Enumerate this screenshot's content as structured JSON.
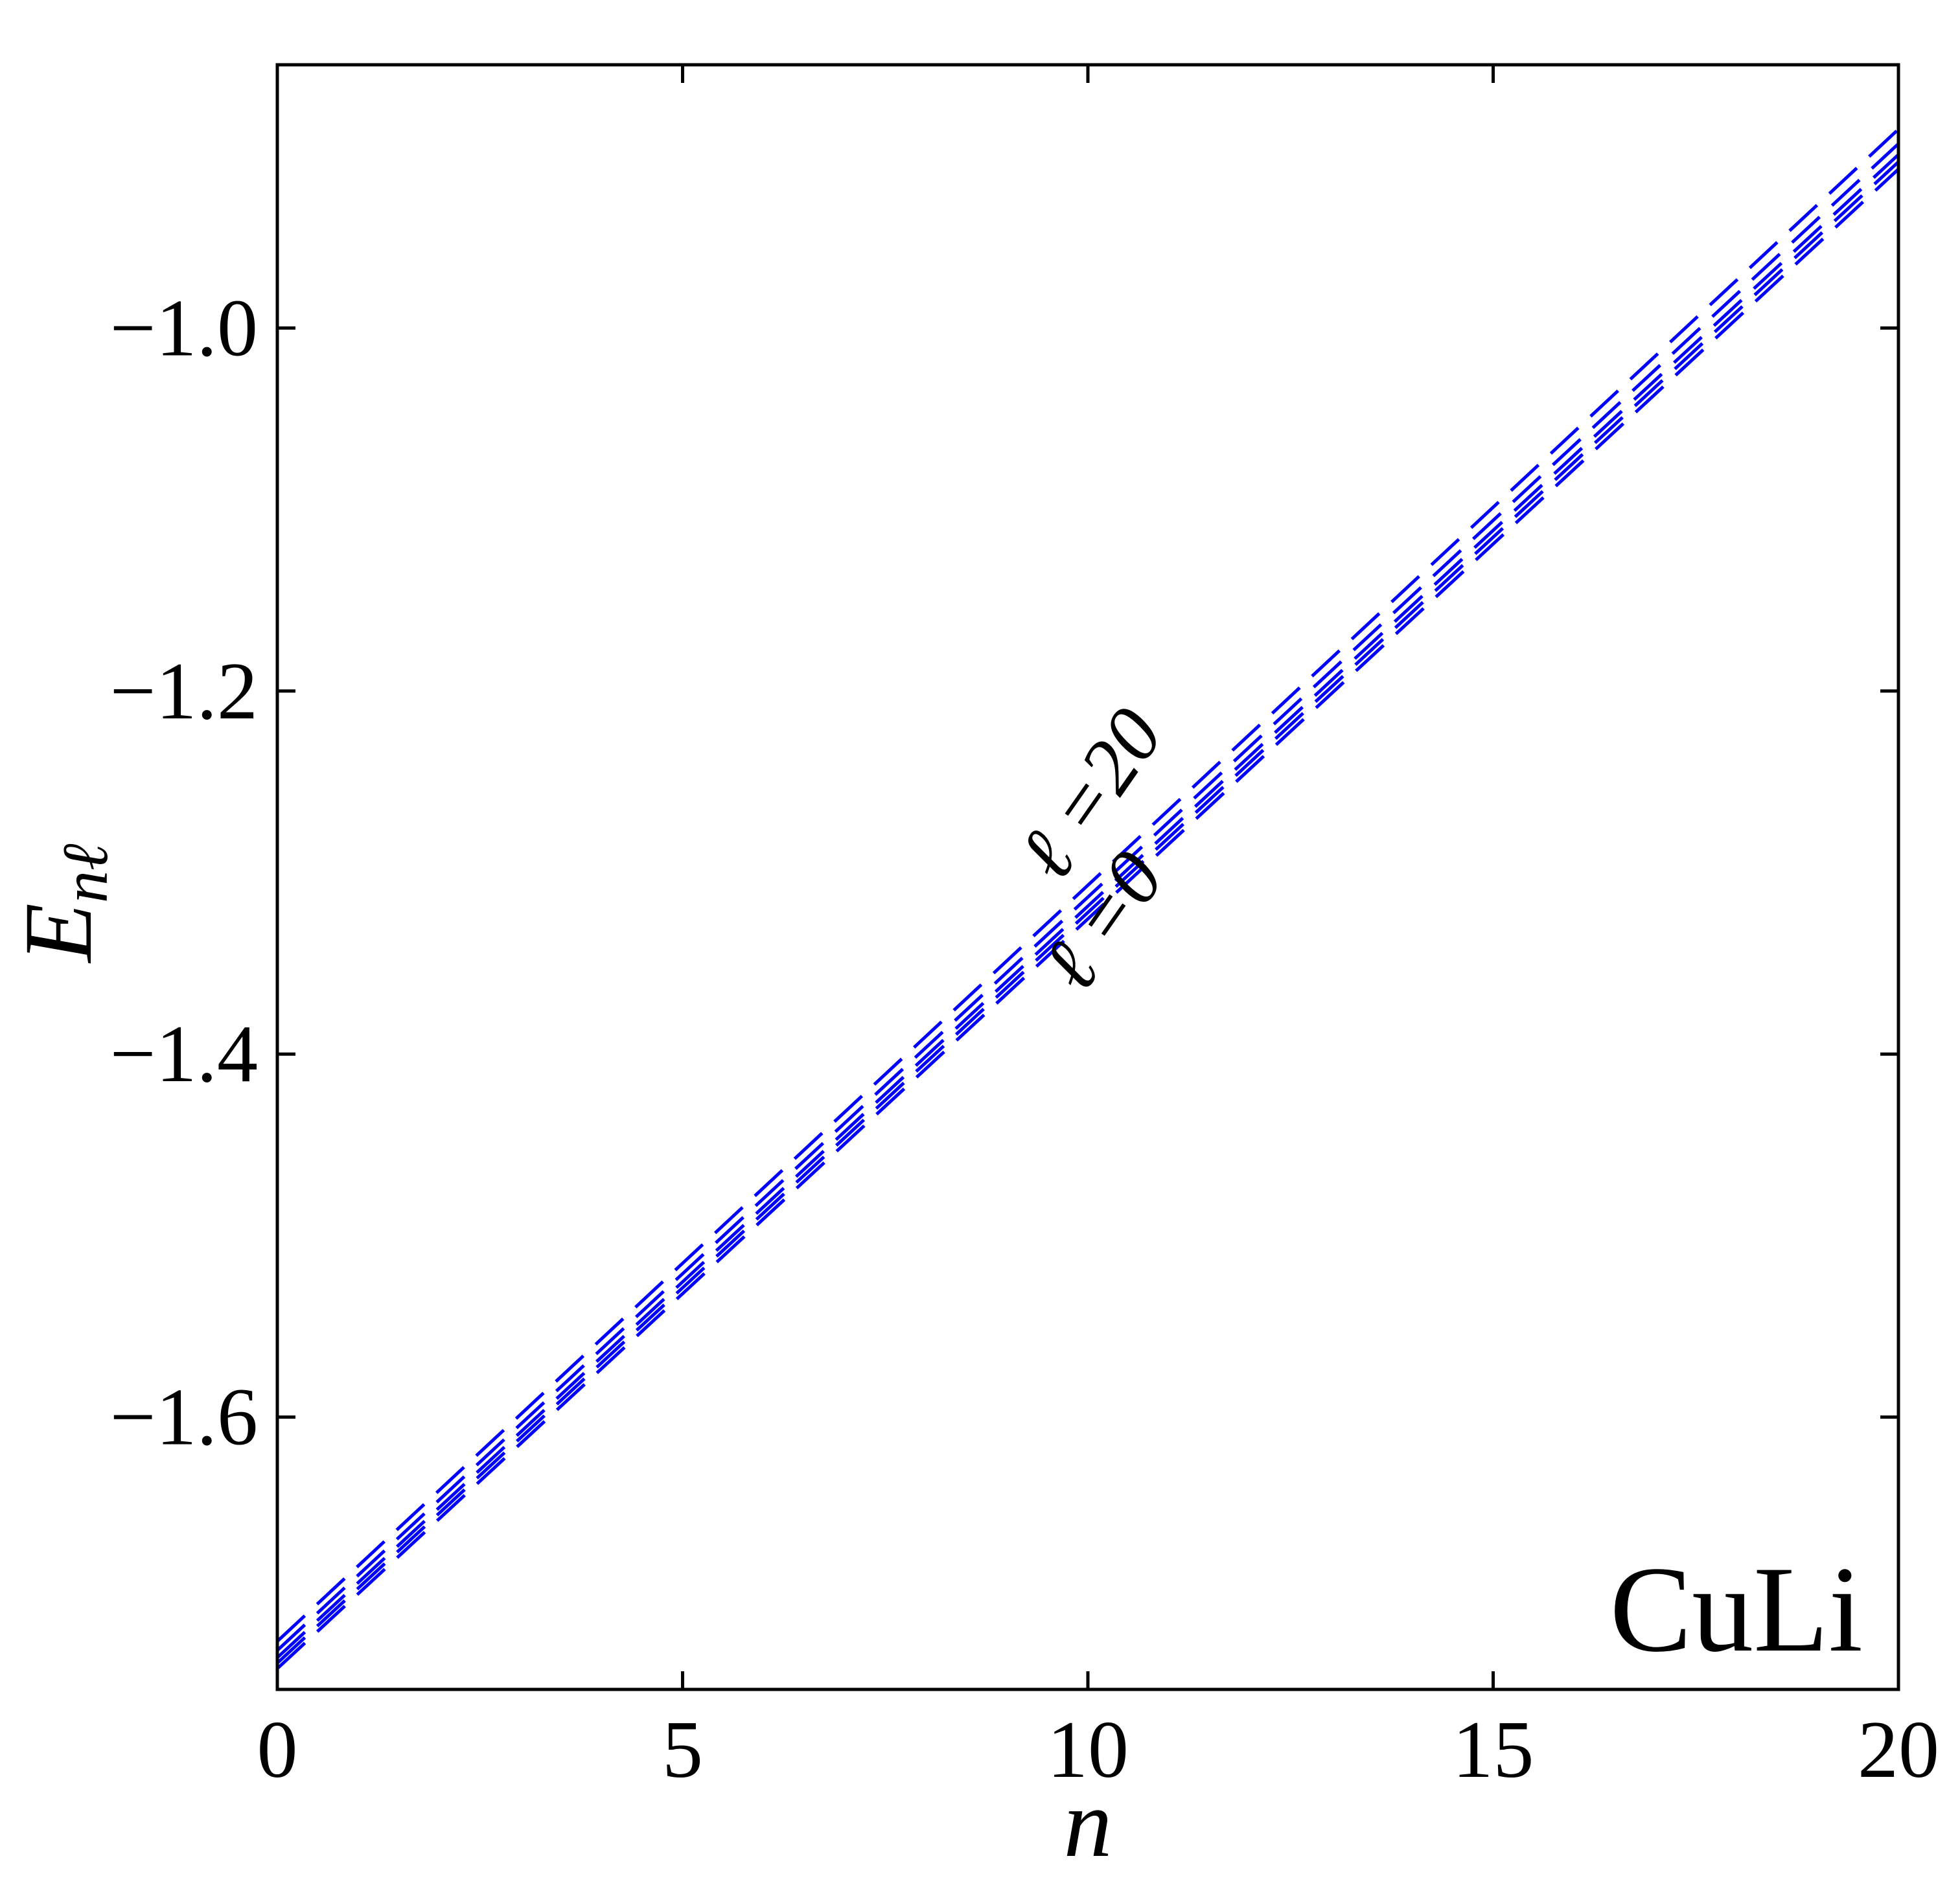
{
  "chart_data": {
    "type": "line",
    "title": "",
    "xlabel": "n",
    "ylabel": "E",
    "ylabel_subscript": "nℓ",
    "xlim": [
      0,
      20
    ],
    "ylim": [
      -1.75,
      -0.855
    ],
    "xticks": [
      0,
      5,
      10,
      15,
      20
    ],
    "xtick_labels": [
      "0",
      "5",
      "10",
      "15",
      "20"
    ],
    "yticks": [
      -1.6,
      -1.4,
      -1.2,
      -1.0
    ],
    "ytick_labels": [
      "−1.6",
      "−1.4",
      "−1.2",
      "−1.0"
    ],
    "grid": false,
    "line_style": "dashed",
    "line_color": "#0000ff",
    "x": [
      0,
      20
    ],
    "series": [
      {
        "values": [
          -1.7235,
          -0.8905
        ]
      },
      {
        "values": [
          -1.7285,
          -0.8985
        ]
      },
      {
        "values": [
          -1.7325,
          -0.9045
        ]
      },
      {
        "values": [
          -1.7355,
          -0.9085
        ]
      },
      {
        "values": [
          -1.7385,
          -0.9125
        ]
      }
    ],
    "annotations": [
      {
        "text": "ℓ =20",
        "x": 10.3,
        "y": -1.265,
        "rotation": -55
      },
      {
        "text": "ℓ =0",
        "x": 10.45,
        "y": -1.335,
        "rotation": -55
      }
    ],
    "box_label": "CuLi"
  }
}
